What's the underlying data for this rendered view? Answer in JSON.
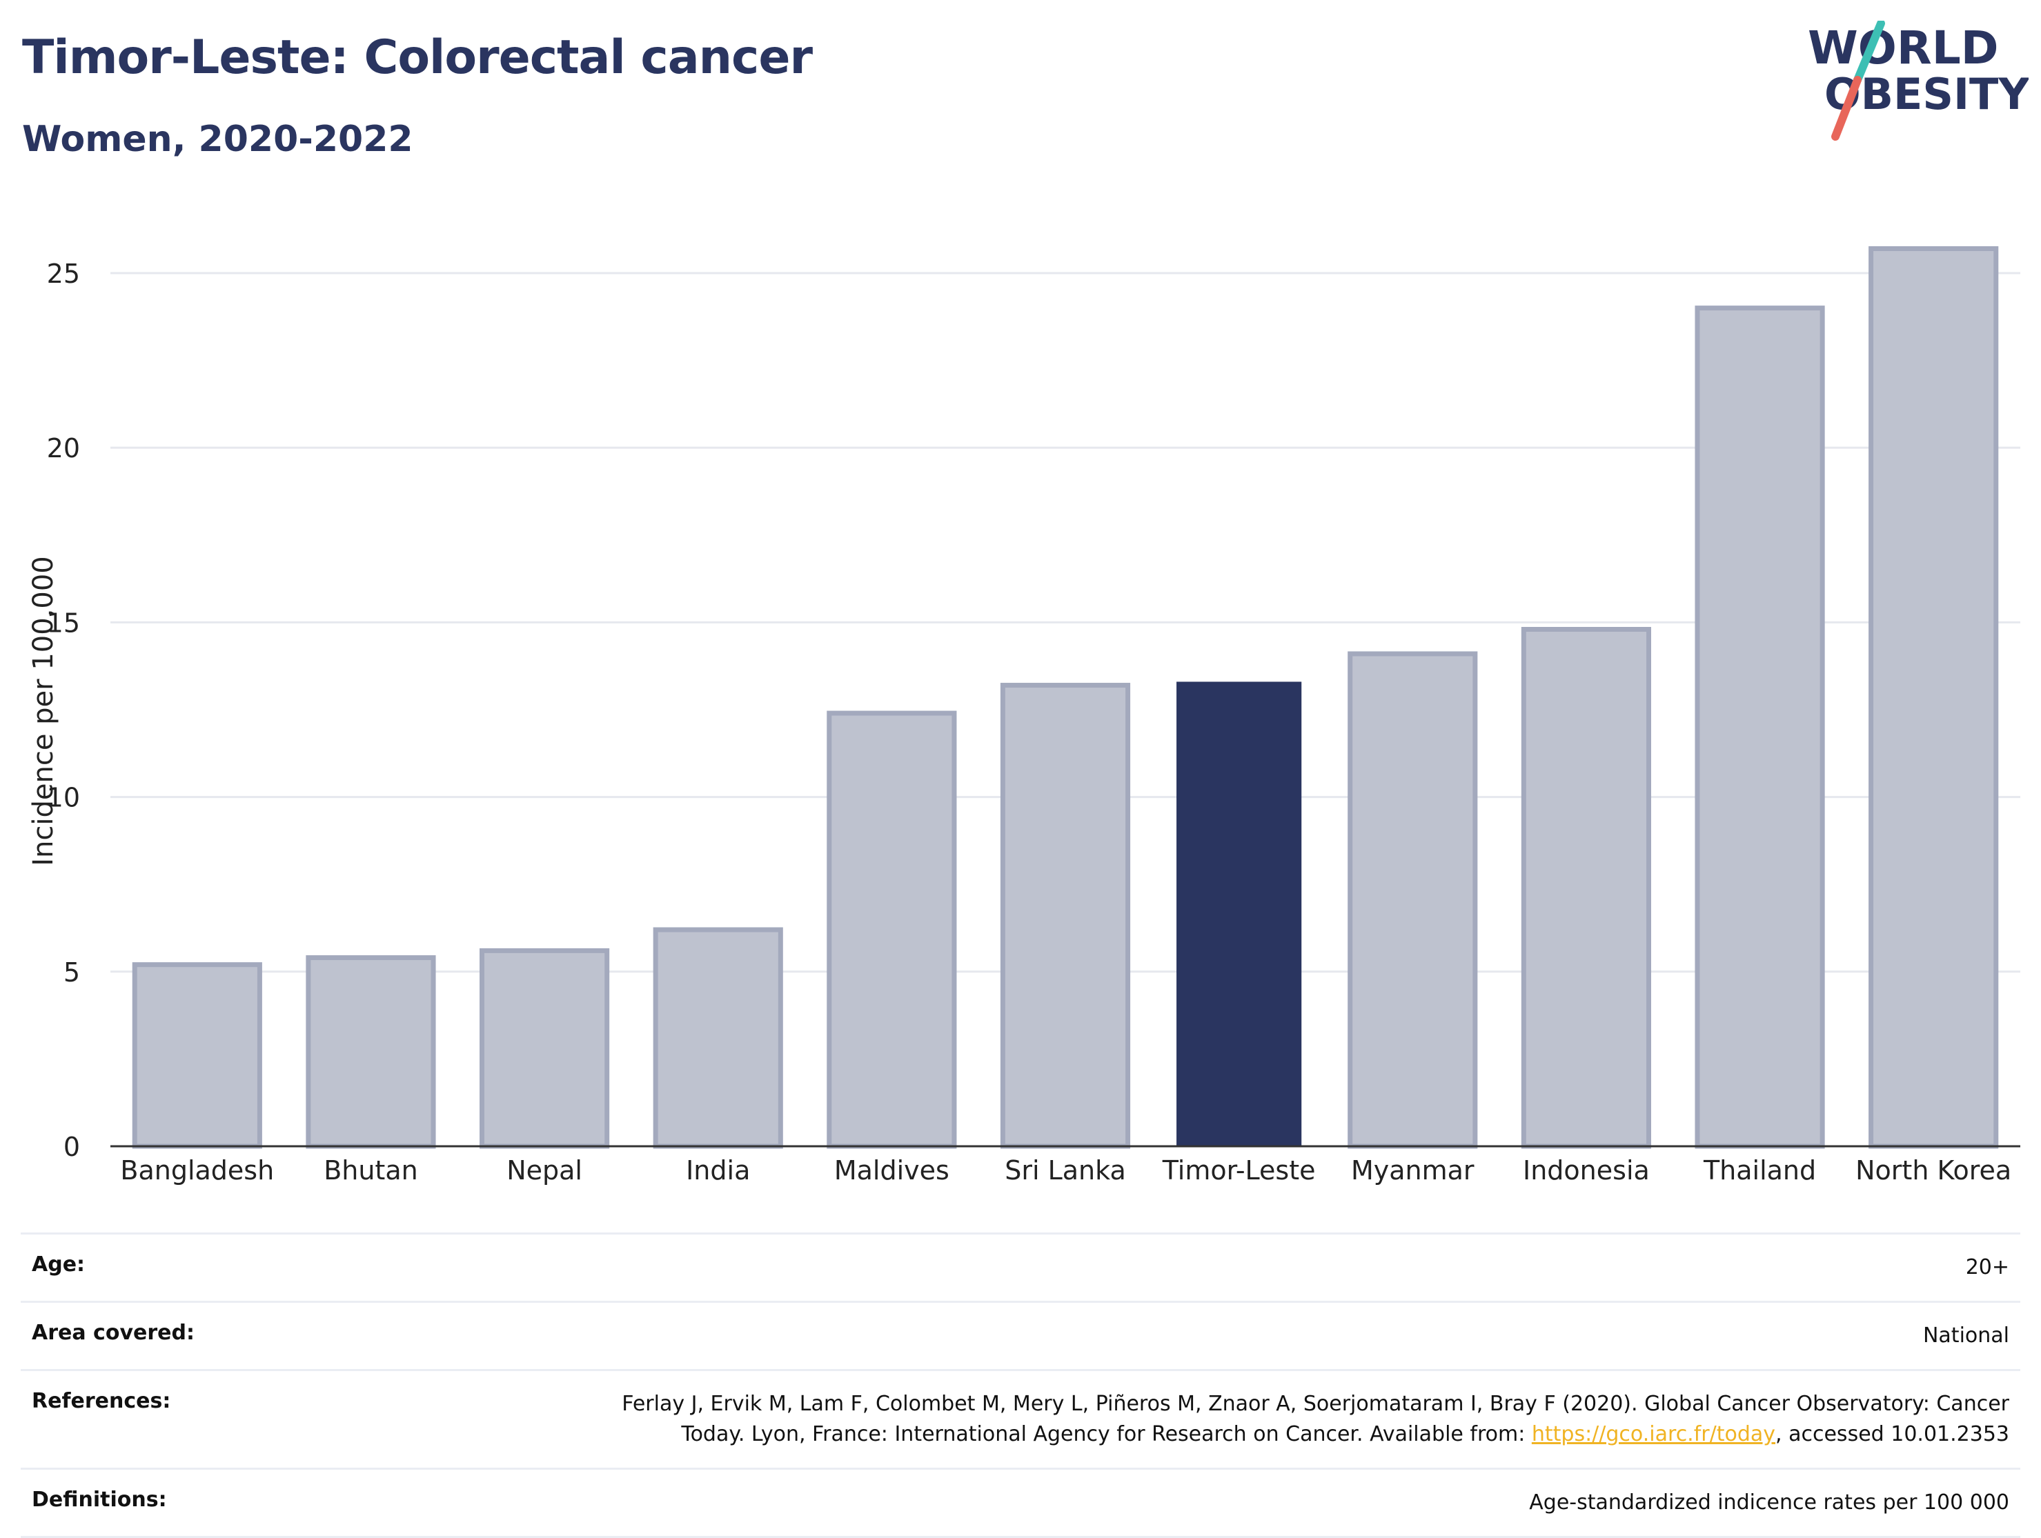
{
  "header": {
    "title": "Timor-Leste: Colorectal cancer",
    "subtitle": "Women, 2020-2022"
  },
  "logo": {
    "line1": "WORLD",
    "line2": "OBESITY",
    "colors": {
      "text": "#2a3560",
      "slash_top": "#3dbfb4",
      "slash_bottom": "#e8665a"
    }
  },
  "chart_data": {
    "type": "bar",
    "title": "Timor-Leste: Colorectal cancer",
    "subtitle": "Women, 2020-2022",
    "xlabel": "",
    "ylabel": "Incidence per 100,000",
    "ylim": [
      0,
      26.5
    ],
    "yticks": [
      0,
      5,
      10,
      15,
      20,
      25
    ],
    "grid": true,
    "categories": [
      "Bangladesh",
      "Bhutan",
      "Nepal",
      "India",
      "Maldives",
      "Sri Lanka",
      "Timor-Leste",
      "Myanmar",
      "Indonesia",
      "Thailand",
      "North Korea"
    ],
    "values": [
      5.2,
      5.4,
      5.6,
      6.2,
      12.4,
      13.2,
      13.3,
      14.1,
      14.8,
      24.0,
      25.7
    ],
    "highlight": "Timor-Leste",
    "colors": {
      "default_fill": "#bec2cf",
      "default_stroke": "#a3a9bd",
      "highlight": "#2a3560"
    }
  },
  "meta": {
    "rows": [
      {
        "label": "Age:",
        "value": "20+"
      },
      {
        "label": "Area covered:",
        "value": "National"
      },
      {
        "label": "References:",
        "value_line1": "Ferlay J, Ervik M, Lam F, Colombet M, Mery L, Piñeros M, Znaor A, Soerjomataram I, Bray F (2020). Global Cancer Observatory: Cancer",
        "value_line2_before": "Today. Lyon, France: International Agency for Research on Cancer. Available from: ",
        "link": "https://gco.iarc.fr/today",
        "value_line2_after": ", accessed 10.01.2353"
      },
      {
        "label": "Definitions:",
        "value": "Age-standardized indicence rates per 100 000"
      }
    ],
    "link_color": "#f0b323"
  }
}
